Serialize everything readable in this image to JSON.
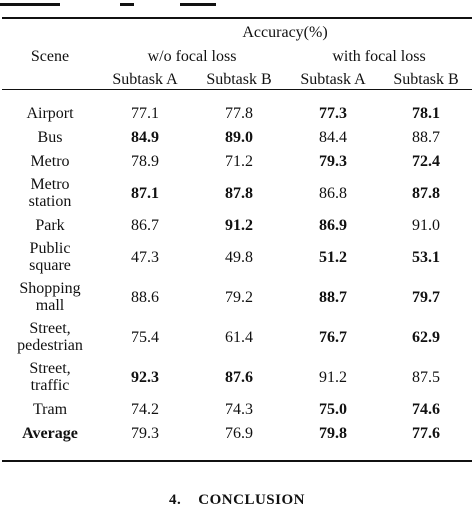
{
  "table": {
    "header": {
      "group_label": "Accuracy(%)",
      "scene_label": "Scene",
      "without_focal": "w/o focal loss",
      "with_focal": "with focal loss",
      "subtask_a": "Subtask A",
      "subtask_b": "Subtask B"
    },
    "rows": [
      {
        "scene": [
          "Airport"
        ],
        "wo_a": "77.1",
        "wo_b": "77.8",
        "w_a": "77.3",
        "w_b": "78.1",
        "bold": [
          false,
          false,
          true,
          true
        ]
      },
      {
        "scene": [
          "Bus"
        ],
        "wo_a": "84.9",
        "wo_b": "89.0",
        "w_a": "84.4",
        "w_b": "88.7",
        "bold": [
          true,
          true,
          false,
          false
        ]
      },
      {
        "scene": [
          "Metro"
        ],
        "wo_a": "78.9",
        "wo_b": "71.2",
        "w_a": "79.3",
        "w_b": "72.4",
        "bold": [
          false,
          false,
          true,
          true
        ]
      },
      {
        "scene": [
          "Metro",
          "station"
        ],
        "wo_a": "87.1",
        "wo_b": "87.8",
        "w_a": "86.8",
        "w_b": "87.8",
        "bold": [
          true,
          true,
          false,
          true
        ]
      },
      {
        "scene": [
          "Park"
        ],
        "wo_a": "86.7",
        "wo_b": "91.2",
        "w_a": "86.9",
        "w_b": "91.0",
        "bold": [
          false,
          true,
          true,
          false
        ]
      },
      {
        "scene": [
          "Public",
          "square"
        ],
        "wo_a": "47.3",
        "wo_b": "49.8",
        "w_a": "51.2",
        "w_b": "53.1",
        "bold": [
          false,
          false,
          true,
          true
        ]
      },
      {
        "scene": [
          "Shopping",
          "mall"
        ],
        "wo_a": "88.6",
        "wo_b": "79.2",
        "w_a": "88.7",
        "w_b": "79.7",
        "bold": [
          false,
          false,
          true,
          true
        ]
      },
      {
        "scene": [
          "Street,",
          "pedestrian"
        ],
        "wo_a": "75.4",
        "wo_b": "61.4",
        "w_a": "76.7",
        "w_b": "62.9",
        "bold": [
          false,
          false,
          true,
          true
        ]
      },
      {
        "scene": [
          "Street,",
          "traffic"
        ],
        "wo_a": "92.3",
        "wo_b": "87.6",
        "w_a": "91.2",
        "w_b": "87.5",
        "bold": [
          true,
          true,
          false,
          false
        ]
      },
      {
        "scene": [
          "Tram"
        ],
        "wo_a": "74.2",
        "wo_b": "74.3",
        "w_a": "75.0",
        "w_b": "74.6",
        "bold": [
          false,
          false,
          true,
          true
        ]
      }
    ],
    "average": {
      "scene": "Average",
      "wo_a": "79.3",
      "wo_b": "76.9",
      "w_a": "79.8",
      "w_b": "77.6",
      "bold": [
        false,
        false,
        true,
        true
      ]
    }
  },
  "section_heading": {
    "number": "4.",
    "title": "CONCLUSION"
  }
}
